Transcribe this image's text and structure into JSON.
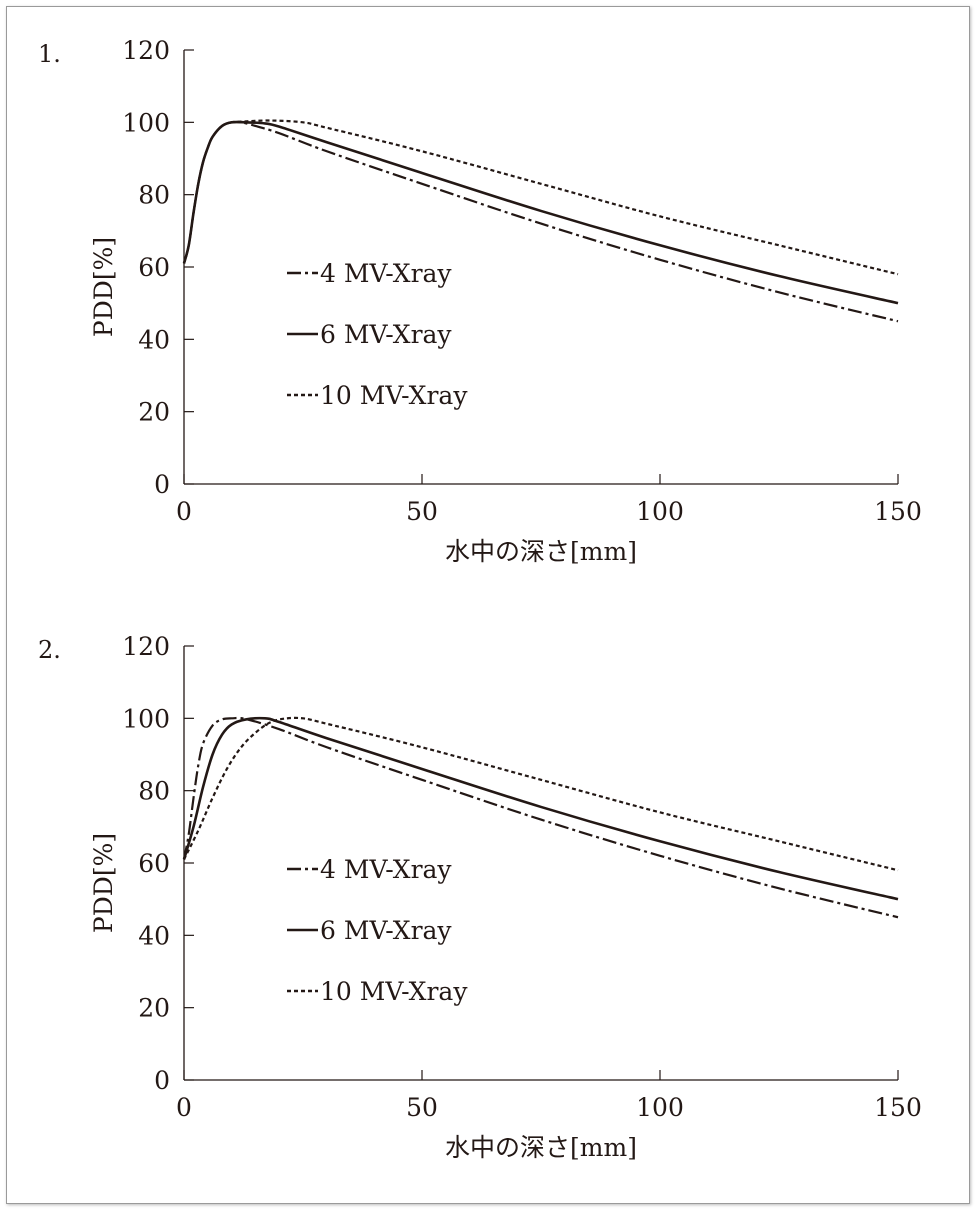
{
  "chart_data": [
    {
      "type": "line",
      "panel_label": "1.",
      "xlabel": "水中の深さ[mm]",
      "ylabel": "PDD[%]",
      "xlim": [
        0,
        150
      ],
      "ylim": [
        0,
        120
      ],
      "xticks": [
        0,
        50,
        100,
        150
      ],
      "yticks": [
        0,
        20,
        40,
        60,
        80,
        100,
        120
      ],
      "grid": false,
      "legend_position": "center-left",
      "series": [
        {
          "name": "4 MV-Xray",
          "style": "dash-dot",
          "points": [
            [
              0,
              61
            ],
            [
              1,
              66
            ],
            [
              2,
              75
            ],
            [
              3,
              83
            ],
            [
              4,
              89
            ],
            [
              5,
              93
            ],
            [
              6,
              96
            ],
            [
              8,
              99
            ],
            [
              10,
              100
            ],
            [
              12,
              100
            ],
            [
              15,
              99
            ],
            [
              20,
              97
            ],
            [
              30,
              92
            ],
            [
              50,
              83
            ],
            [
              75,
              72
            ],
            [
              100,
              62
            ],
            [
              125,
              53
            ],
            [
              150,
              45
            ]
          ]
        },
        {
          "name": "6 MV-Xray",
          "style": "solid",
          "points": [
            [
              0,
              61
            ],
            [
              1,
              66
            ],
            [
              2,
              75
            ],
            [
              3,
              83
            ],
            [
              4,
              89
            ],
            [
              5,
              93
            ],
            [
              6,
              96
            ],
            [
              8,
              99
            ],
            [
              10,
              100
            ],
            [
              13,
              100
            ],
            [
              17,
              99.7
            ],
            [
              20,
              98.8
            ],
            [
              30,
              94.5
            ],
            [
              50,
              86
            ],
            [
              75,
              75.5
            ],
            [
              100,
              66
            ],
            [
              125,
              57.5
            ],
            [
              150,
              50
            ]
          ]
        },
        {
          "name": "10 MV-Xray",
          "style": "dotted",
          "points": [
            [
              0,
              61
            ],
            [
              1,
              66
            ],
            [
              2,
              75
            ],
            [
              3,
              83
            ],
            [
              4,
              89
            ],
            [
              5,
              93
            ],
            [
              6,
              96
            ],
            [
              8,
              99
            ],
            [
              10,
              100
            ],
            [
              12,
              100.2
            ],
            [
              18,
              100.5
            ],
            [
              25,
              100
            ],
            [
              30,
              98.5
            ],
            [
              50,
              92
            ],
            [
              75,
              83
            ],
            [
              100,
              74
            ],
            [
              125,
              66
            ],
            [
              150,
              58
            ]
          ]
        }
      ]
    },
    {
      "type": "line",
      "panel_label": "2.",
      "xlabel": "水中の深さ[mm]",
      "ylabel": "PDD[%]",
      "xlim": [
        0,
        150
      ],
      "ylim": [
        0,
        120
      ],
      "xticks": [
        0,
        50,
        100,
        150
      ],
      "yticks": [
        0,
        20,
        40,
        60,
        80,
        100,
        120
      ],
      "grid": false,
      "legend_position": "center-left",
      "series": [
        {
          "name": "4 MV-Xray",
          "style": "dash-dot",
          "points": [
            [
              0,
              61
            ],
            [
              1,
              68
            ],
            [
              2,
              78
            ],
            [
              3,
              87
            ],
            [
              4,
              93
            ],
            [
              6,
              98
            ],
            [
              8,
              99.7
            ],
            [
              10,
              100
            ],
            [
              13,
              99.8
            ],
            [
              20,
              97
            ],
            [
              30,
              92
            ],
            [
              50,
              83
            ],
            [
              75,
              72
            ],
            [
              100,
              62
            ],
            [
              125,
              53
            ],
            [
              150,
              45
            ]
          ]
        },
        {
          "name": "6 MV-Xray",
          "style": "solid",
          "points": [
            [
              0,
              61
            ],
            [
              2,
              70
            ],
            [
              4,
              81
            ],
            [
              6,
              90
            ],
            [
              8,
              95.5
            ],
            [
              10,
              98.3
            ],
            [
              13,
              99.7
            ],
            [
              17,
              100
            ],
            [
              20,
              99
            ],
            [
              30,
              94.5
            ],
            [
              50,
              86
            ],
            [
              75,
              75.5
            ],
            [
              100,
              66
            ],
            [
              125,
              57.5
            ],
            [
              150,
              50
            ]
          ]
        },
        {
          "name": "10 MV-Xray",
          "style": "dotted",
          "points": [
            [
              0,
              61
            ],
            [
              3,
              69
            ],
            [
              6,
              78
            ],
            [
              9,
              86
            ],
            [
              12,
              92
            ],
            [
              15,
              96
            ],
            [
              18,
              98.8
            ],
            [
              21,
              99.9
            ],
            [
              25,
              100
            ],
            [
              30,
              98.5
            ],
            [
              50,
              92
            ],
            [
              75,
              83
            ],
            [
              100,
              74
            ],
            [
              125,
              66
            ],
            [
              150,
              58
            ]
          ]
        }
      ]
    }
  ]
}
